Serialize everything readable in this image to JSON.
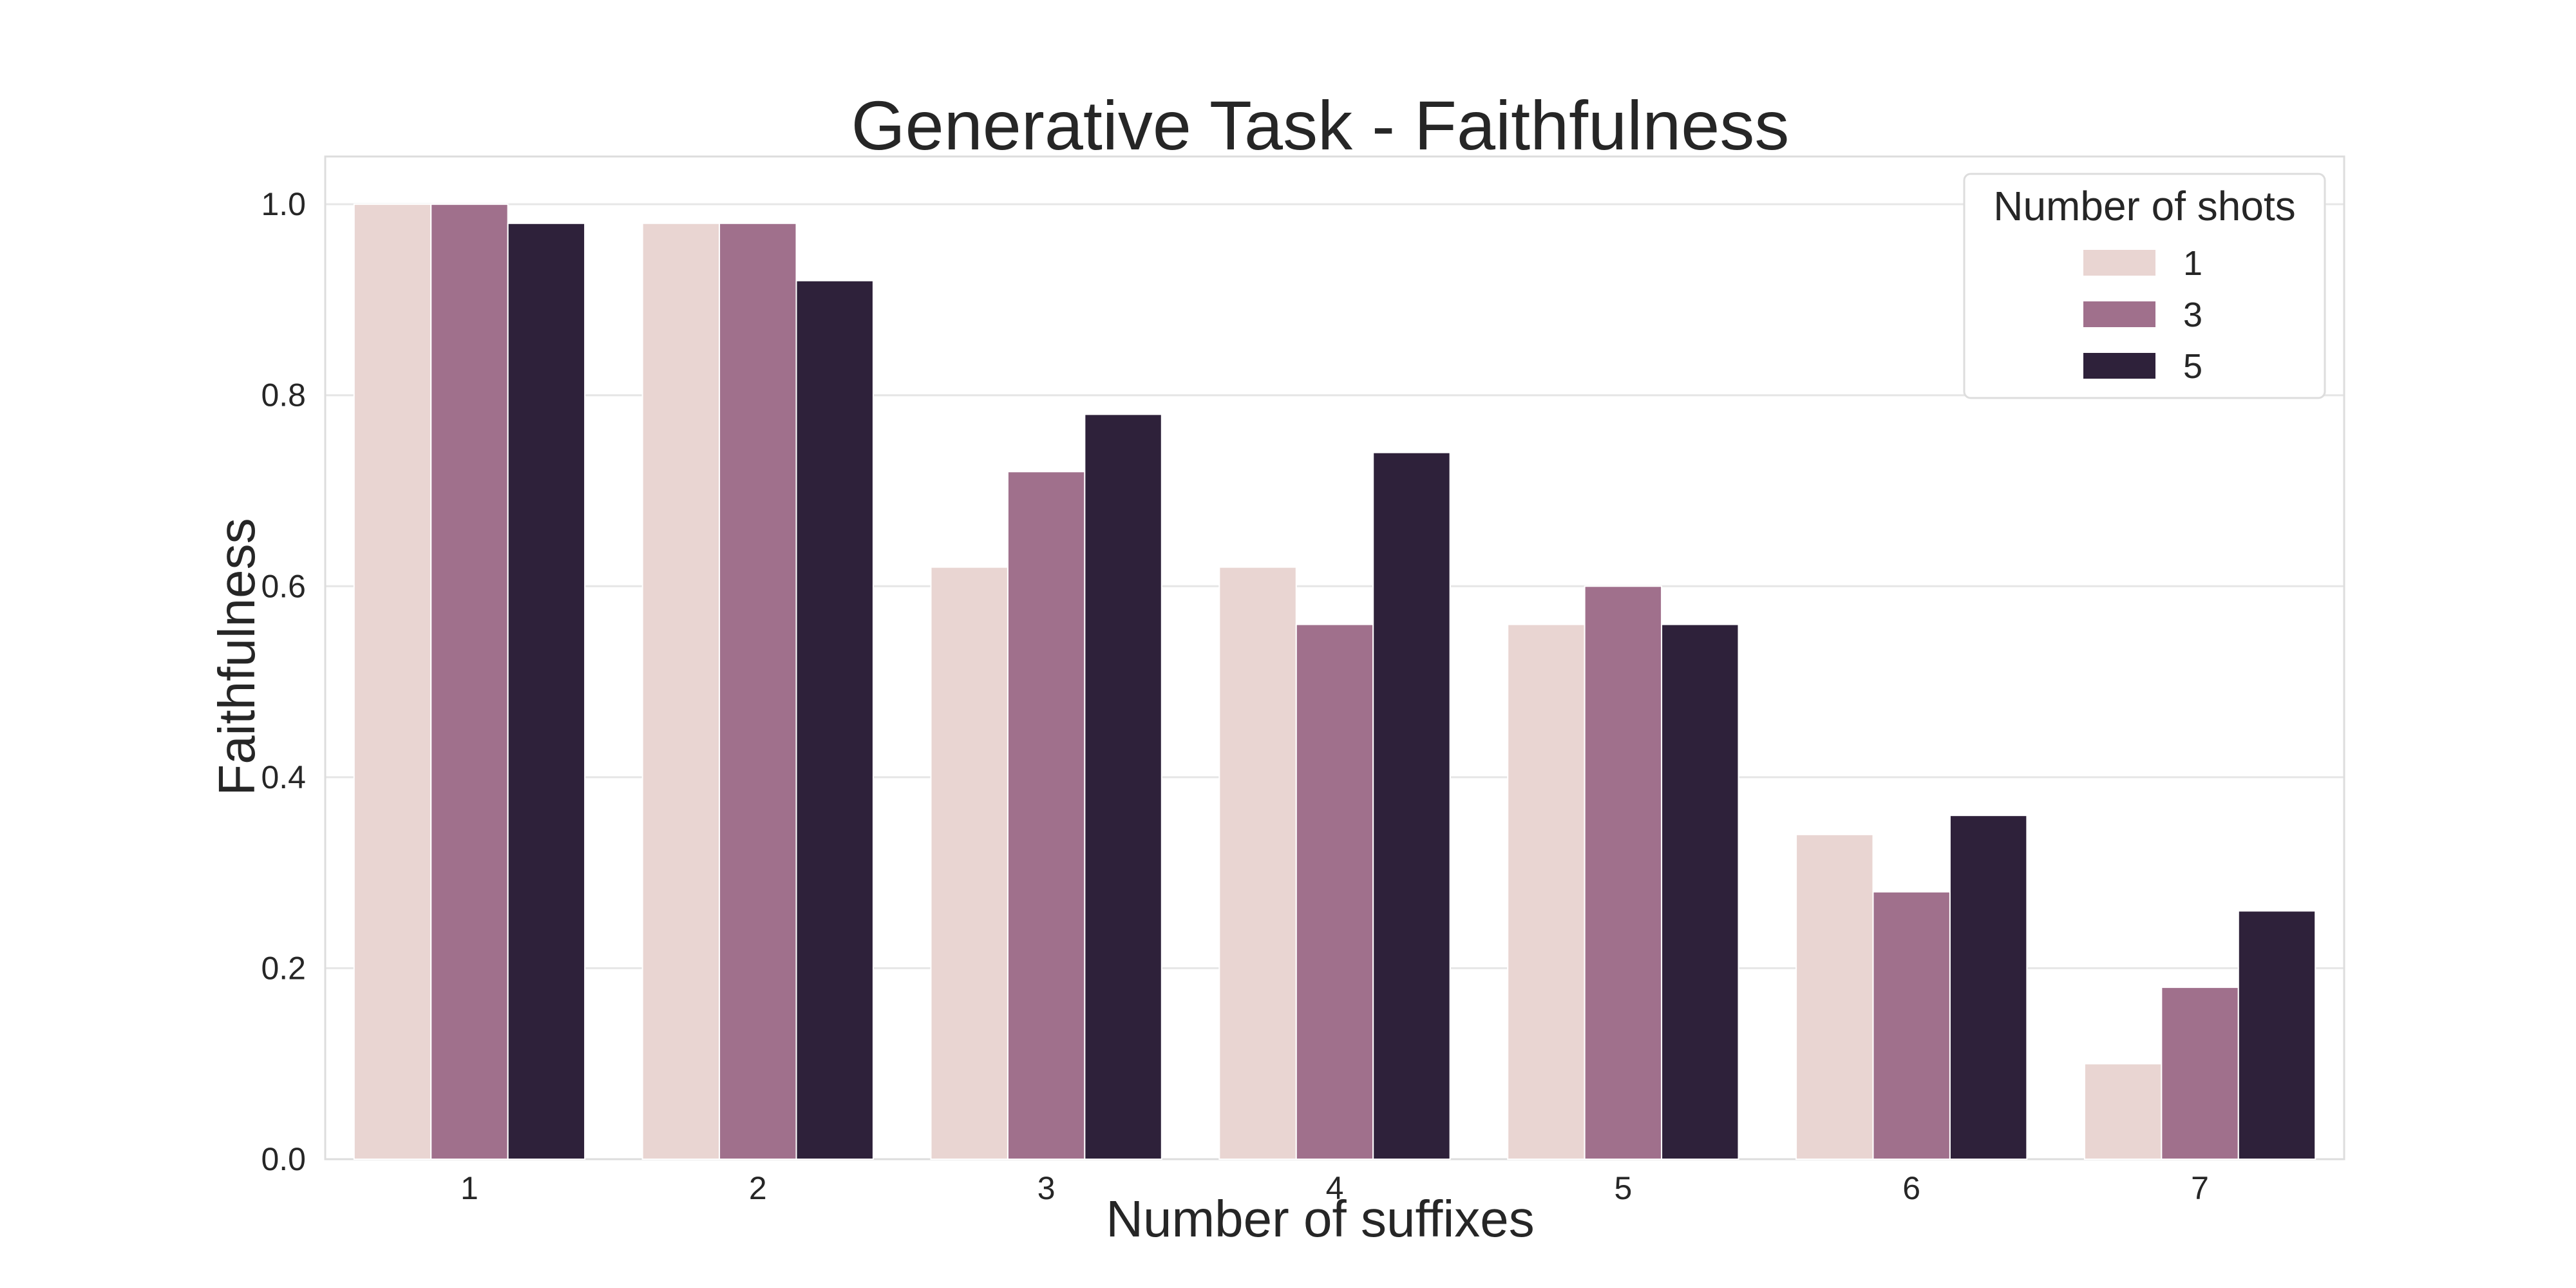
{
  "chart_data": {
    "type": "bar",
    "title": "Generative Task - Faithfulness",
    "xlabel": "Number of suffixes",
    "ylabel": "Faithfulness",
    "categories": [
      "1",
      "2",
      "3",
      "4",
      "5",
      "6",
      "7"
    ],
    "ylim": [
      0,
      1.05
    ],
    "yticks": [
      "0.0",
      "0.2",
      "0.4",
      "0.6",
      "0.8",
      "1.0"
    ],
    "grid": true,
    "legend": {
      "title": "Number of shots",
      "placement": "top-right"
    },
    "series": [
      {
        "name": "1",
        "color": "#e9d5d2",
        "values": [
          1.0,
          0.98,
          0.62,
          0.62,
          0.56,
          0.34,
          0.1
        ]
      },
      {
        "name": "3",
        "color": "#a0708c",
        "values": [
          1.0,
          0.98,
          0.72,
          0.56,
          0.6,
          0.28,
          0.18
        ]
      },
      {
        "name": "5",
        "color": "#2e213a",
        "values": [
          0.98,
          0.92,
          0.78,
          0.74,
          0.56,
          0.36,
          0.26
        ]
      }
    ]
  }
}
